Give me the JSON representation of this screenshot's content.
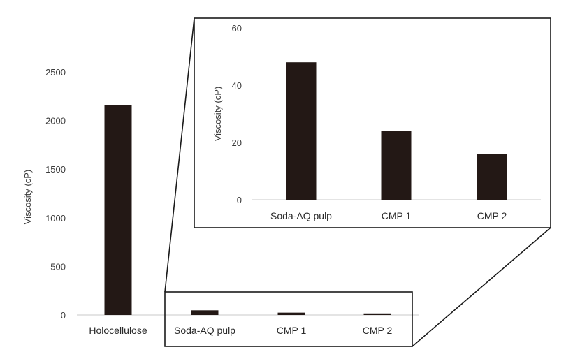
{
  "chart_data": [
    {
      "type": "bar",
      "categories": [
        "Holocellulose",
        "Soda-AQ pulp",
        "CMP 1",
        "CMP 2"
      ],
      "values": [
        2160,
        48,
        24,
        16
      ],
      "title": "",
      "xlabel": "",
      "ylabel": "Viscosity (cP)",
      "ylim": [
        0,
        2500
      ],
      "yticks": [
        "0",
        "500",
        "1000",
        "1500",
        "2000",
        "2500"
      ],
      "grid": false,
      "bar_color": "#231815"
    },
    {
      "type": "bar",
      "categories": [
        "Soda-AQ pulp",
        "CMP 1",
        "CMP 2"
      ],
      "values": [
        48,
        24,
        16
      ],
      "title": "",
      "xlabel": "",
      "ylabel": "Viscosity (cP)",
      "ylim": [
        0,
        60
      ],
      "yticks": [
        "0",
        "20",
        "40",
        "60"
      ],
      "grid": false,
      "bar_color": "#231815"
    }
  ]
}
